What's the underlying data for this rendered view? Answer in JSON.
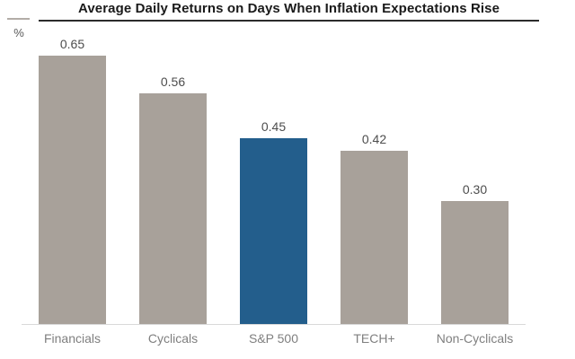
{
  "chart_data": {
    "type": "bar",
    "title": "Average Daily Returns on Days When Inflation Expectations Rise",
    "unit_label": "%",
    "categories": [
      "Financials",
      "Cyclicals",
      "S&P 500",
      "TECH+",
      "Non-Cyclicals"
    ],
    "values": [
      0.65,
      0.56,
      0.45,
      0.42,
      0.3
    ],
    "value_labels": [
      "0.65",
      "0.56",
      "0.45",
      "0.42",
      "0.30"
    ],
    "highlight_index": 2,
    "colors": {
      "default_bar": "#a8a19a",
      "highlight_bar": "#235e8c",
      "baseline": "#d9d9d9",
      "title_text": "#1a1a1a",
      "value_text": "#4d4d4d",
      "category_text": "#7f7f7f"
    },
    "xlabel": "",
    "ylabel": "%",
    "ylim": [
      0,
      0.65
    ],
    "grid": false,
    "legend": "none"
  }
}
